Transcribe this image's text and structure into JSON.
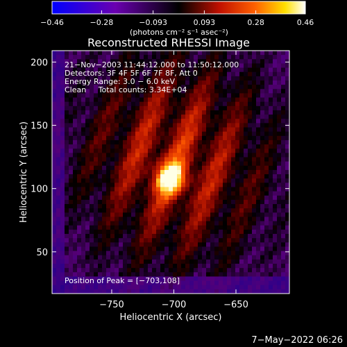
{
  "chart_data": {
    "type": "heatmap",
    "title": "Reconstructed RHESSI Image",
    "xlabel": "Heliocentric X (arcsec)",
    "ylabel": "Heliocentric Y (arcsec)",
    "xlim": [
      -798,
      -607
    ],
    "ylim": [
      17,
      209
    ],
    "xticks": [
      -750,
      -700,
      -650
    ],
    "xtick_labels": [
      "−750",
      "−700",
      "−650"
    ],
    "yticks": [
      50,
      100,
      150,
      200
    ],
    "ytick_labels": [
      "50",
      "100",
      "150",
      "200"
    ],
    "colorbar": {
      "min": -0.46,
      "max": 0.46,
      "ticks": [
        -0.46,
        -0.28,
        -0.093,
        0.093,
        0.28,
        0.46
      ],
      "tick_labels": [
        "−0.46",
        "−0.28",
        "−0.093",
        "0.093",
        "0.28",
        "0.46"
      ],
      "units": "(photons cm⁻² s⁻¹ asec⁻²)"
    },
    "peak": {
      "x": -703,
      "y": 108
    },
    "annotations": [
      "21−Nov−2003 11:44:12.000 to 11:50:12.000",
      "Detectors: 3F 4F 5F 6F 7F 8F, Att 0",
      "Energy Range: 3.0 − 6.0 keV",
      "Clean     Total counts: 3.34E+04"
    ],
    "peak_label": "Position of Peak = [−703,108]",
    "colormap": [
      "#0000ff",
      "#6a00b0",
      "#000000",
      "#c01000",
      "#ff6000",
      "#ffe000",
      "#ffffff"
    ]
  },
  "footer": {
    "date": "7−May−2022 06:26"
  }
}
